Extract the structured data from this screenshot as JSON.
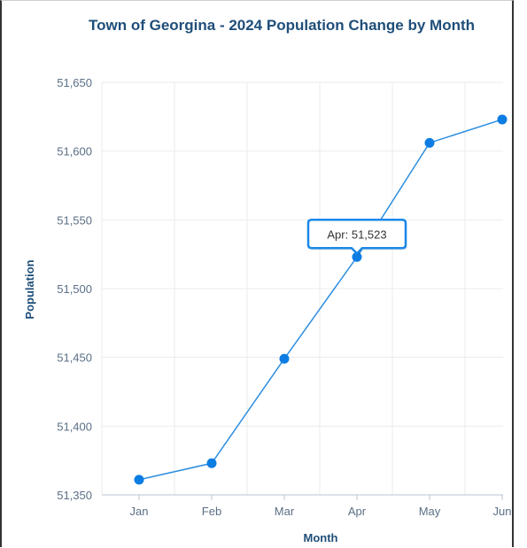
{
  "chart_data": {
    "type": "line",
    "title": "Town of Georgina - 2024 Population Change by Month",
    "xlabel": "Month",
    "ylabel": "Population",
    "categories": [
      "Jan",
      "Feb",
      "Mar",
      "Apr",
      "May",
      "Jun"
    ],
    "series": [
      {
        "values": [
          51361,
          51373,
          51449,
          51523,
          51606,
          51623
        ]
      }
    ],
    "ylim": [
      51350,
      51650
    ],
    "yticks": [
      51350,
      51400,
      51450,
      51500,
      51550,
      51600,
      51650
    ],
    "ytick_labels": [
      "51,350",
      "51,400",
      "51,450",
      "51,500",
      "51,550",
      "51,600",
      "51,650"
    ],
    "grid": true,
    "line_color": "#2c8ee0",
    "marker_color": "#0b7de3",
    "tooltip": {
      "category_index": 3,
      "text": "Apr: 51,523",
      "border_color": "#1a88e8"
    }
  }
}
